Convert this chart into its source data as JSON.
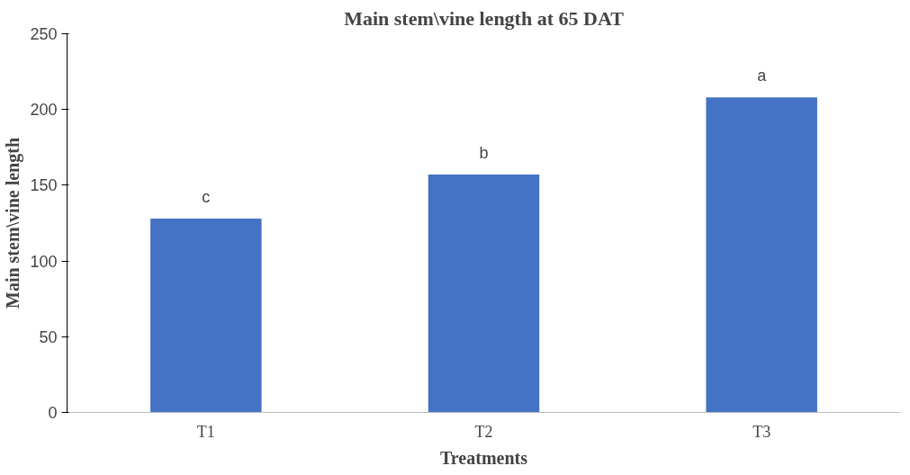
{
  "chart_data": {
    "type": "bar",
    "title": "Main stem\\vine length at 65 DAT",
    "xlabel": "Treatments",
    "ylabel": "Main stem\\vine length",
    "categories": [
      "T1",
      "T2",
      "T3"
    ],
    "values": [
      128,
      157,
      208
    ],
    "color": "#4472c4",
    "ylim": [
      0,
      250
    ],
    "yticks": [
      0,
      50,
      100,
      150,
      200,
      250
    ],
    "grid": false,
    "annotations": [
      {
        "text": "c",
        "x": "T1",
        "y": 128
      },
      {
        "text": "b",
        "x": "T2",
        "y": 157
      },
      {
        "text": "a",
        "x": "T3",
        "y": 208
      }
    ]
  }
}
